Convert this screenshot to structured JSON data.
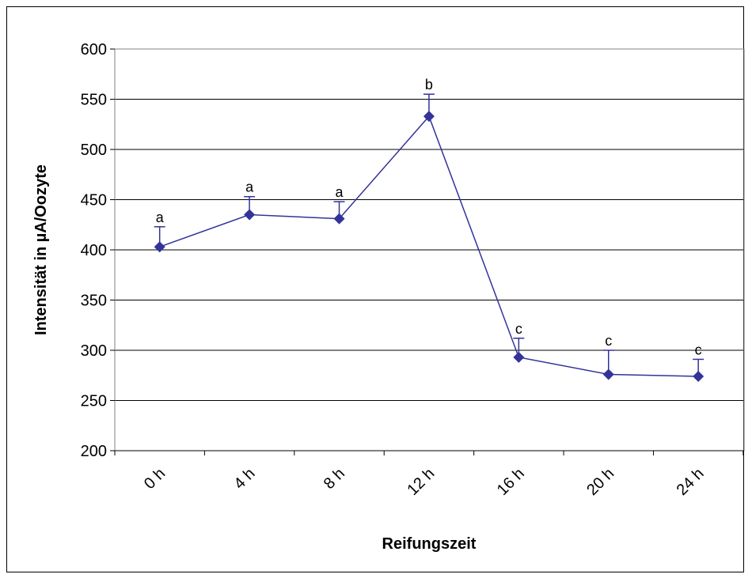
{
  "chart_data": {
    "type": "line",
    "title": "",
    "xlabel": "Reifungszeit",
    "ylabel": "Intensität in µA/Oozyte",
    "ylim": [
      200,
      600
    ],
    "yticks": [
      "200",
      "250",
      "300",
      "350",
      "400",
      "450",
      "500",
      "550",
      "600"
    ],
    "categories": [
      "0 h",
      "4 h",
      "8 h",
      "12 h",
      "16 h",
      "20 h",
      "24 h"
    ],
    "series": [
      {
        "values": [
          403,
          435,
          431,
          533,
          293,
          276,
          274
        ],
        "error_plus": [
          20,
          18,
          17,
          22,
          19,
          24,
          17
        ],
        "significance": [
          "a",
          "a",
          "a",
          "b",
          "c",
          "c",
          "c"
        ],
        "color": "#333399"
      }
    ],
    "grid": "horizontal",
    "legend": "none"
  }
}
